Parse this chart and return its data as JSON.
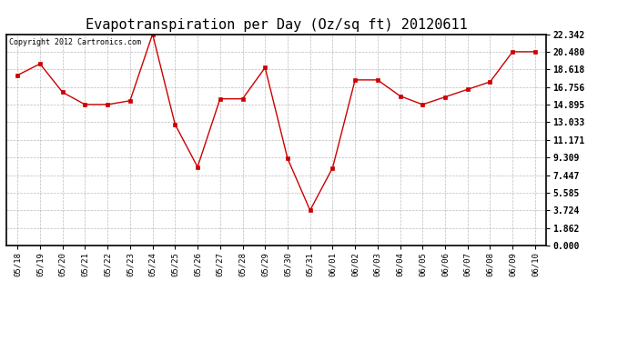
{
  "title": "Evapotranspiration per Day (Oz/sq ft) 20120611",
  "copyright": "Copyright 2012 Cartronics.com",
  "x_labels": [
    "05/18",
    "05/19",
    "05/20",
    "05/21",
    "05/22",
    "05/23",
    "05/24",
    "05/25",
    "05/26",
    "05/27",
    "05/28",
    "05/29",
    "05/30",
    "05/31",
    "06/01",
    "06/02",
    "06/03",
    "06/04",
    "06/05",
    "06/06",
    "06/07",
    "06/08",
    "06/09",
    "06/10"
  ],
  "y_values": [
    18.0,
    19.2,
    16.2,
    14.9,
    14.9,
    15.3,
    22.342,
    12.8,
    8.3,
    15.5,
    15.5,
    18.8,
    9.2,
    3.724,
    8.2,
    17.5,
    17.5,
    15.8,
    14.9,
    15.7,
    16.5,
    17.3,
    20.48,
    20.48
  ],
  "y_ticks": [
    0.0,
    1.862,
    3.724,
    5.585,
    7.447,
    9.309,
    11.171,
    13.033,
    14.895,
    16.756,
    18.618,
    20.48,
    22.342
  ],
  "y_tick_labels": [
    "0.000",
    "1.862",
    "3.724",
    "5.585",
    "7.447",
    "9.309",
    "11.171",
    "13.033",
    "14.895",
    "16.756",
    "18.618",
    "20.480",
    "22.342"
  ],
  "ylim": [
    0.0,
    22.342
  ],
  "line_color": "#cc0000",
  "marker": "s",
  "marker_size": 2.5,
  "bg_color": "#ffffff",
  "plot_bg_color": "#ffffff",
  "grid_color": "#aaaaaa",
  "title_fontsize": 11,
  "copyright_fontsize": 6,
  "tick_fontsize": 6.5,
  "ytick_fontsize": 7
}
